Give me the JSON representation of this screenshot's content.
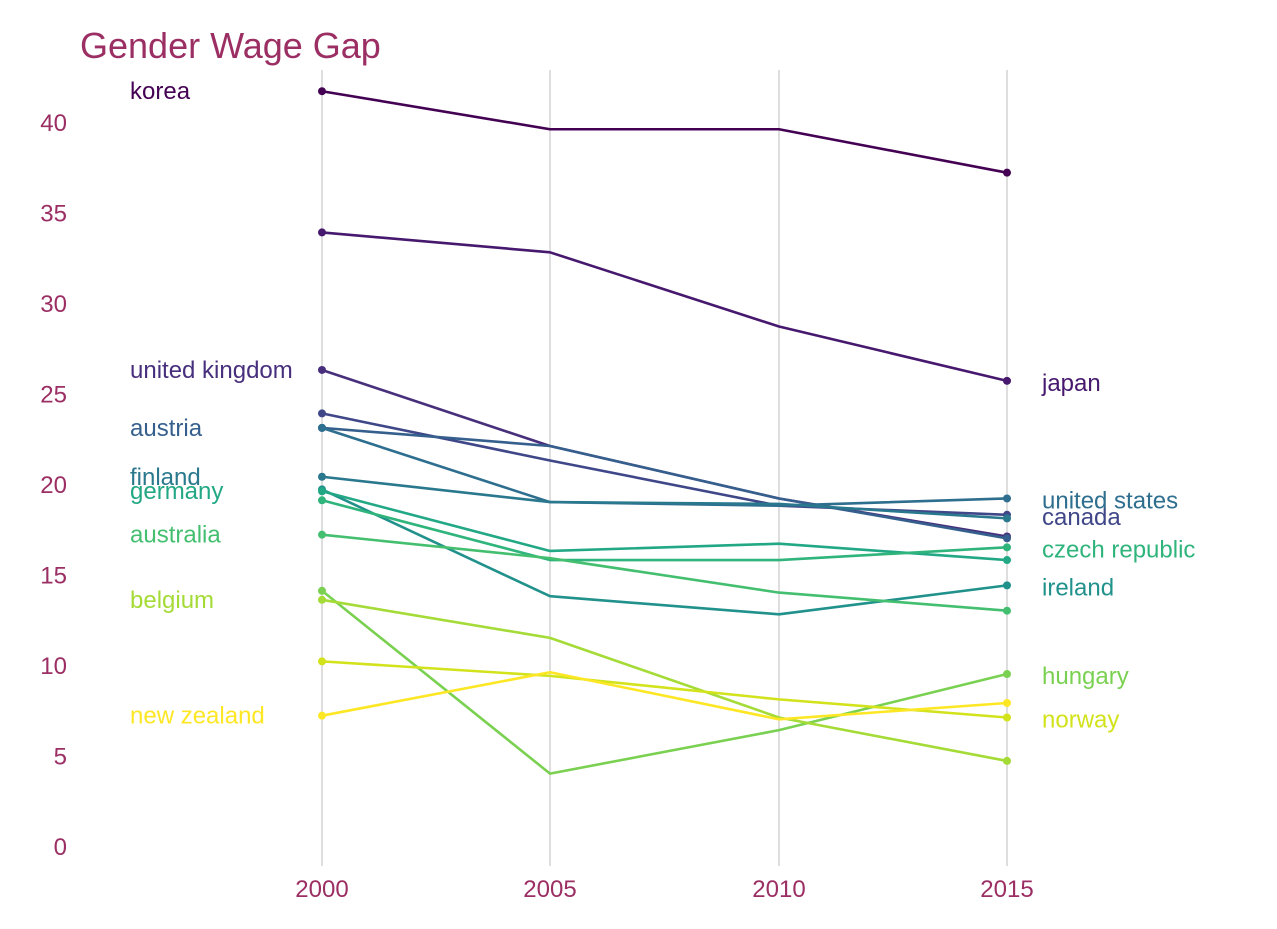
{
  "chart_data": {
    "type": "line",
    "title": "Gender Wage Gap",
    "xlabel": "",
    "ylabel": "",
    "x": [
      2000,
      2005,
      2010,
      2015
    ],
    "x_tick_labels": [
      "2000",
      "2005",
      "2010",
      "2015"
    ],
    "ylim": [
      0,
      42
    ],
    "y_ticks": [
      0,
      5,
      10,
      15,
      20,
      25,
      30,
      35,
      40
    ],
    "grid": "vertical lines at x ticks only",
    "legend": "none (direct labels: left at 2000 and right at 2015)",
    "colors": {
      "title": "#9b2f63",
      "ticks": "#9b2f63",
      "grid": "#c8c8c8"
    },
    "series": [
      {
        "name": "korea",
        "color": "#440154",
        "values": [
          41.7,
          39.6,
          39.6,
          37.2
        ],
        "label_side": "left"
      },
      {
        "name": "japan",
        "color": "#46186e",
        "values": [
          33.9,
          32.8,
          28.7,
          25.7
        ],
        "label_side": "right"
      },
      {
        "name": "united kingdom",
        "color": "#472f7d",
        "values": [
          26.3,
          22.1,
          19.2,
          17.1
        ],
        "label_side": "left"
      },
      {
        "name": "canada",
        "color": "#3f4788",
        "values": [
          23.9,
          21.3,
          18.8,
          18.3
        ],
        "label_side": "right"
      },
      {
        "name": "austria",
        "color": "#355f8d",
        "values": [
          23.1,
          22.1,
          19.2,
          17.0
        ],
        "label_side": "left"
      },
      {
        "name": "united states",
        "color": "#2e6e8e",
        "values": [
          23.1,
          19.0,
          18.8,
          19.2
        ],
        "label_side": "right"
      },
      {
        "name": "finland",
        "color": "#2a788e",
        "values": [
          20.4,
          19.0,
          18.9,
          18.1
        ],
        "label_side": "left"
      },
      {
        "name": "ireland",
        "color": "#21918c",
        "values": [
          19.7,
          13.8,
          12.8,
          14.4
        ],
        "label_side": "right"
      },
      {
        "name": "germany",
        "color": "#22a884",
        "values": [
          19.6,
          16.3,
          16.7,
          15.8
        ],
        "label_side": "left"
      },
      {
        "name": "czech republic",
        "color": "#2fb47c",
        "values": [
          19.1,
          15.8,
          15.8,
          16.5
        ],
        "label_side": "right"
      },
      {
        "name": "australia",
        "color": "#44bf70",
        "values": [
          17.2,
          15.9,
          14.0,
          13.0
        ],
        "label_side": "left"
      },
      {
        "name": "hungary",
        "color": "#7ad151",
        "values": [
          14.1,
          4.0,
          6.4,
          9.5
        ],
        "label_side": "right"
      },
      {
        "name": "belgium",
        "color": "#a5db36",
        "values": [
          13.6,
          11.5,
          7.1,
          4.7
        ],
        "label_side": "left"
      },
      {
        "name": "norway",
        "color": "#d2e21b",
        "values": [
          10.2,
          9.4,
          8.1,
          7.1
        ],
        "label_side": "right"
      },
      {
        "name": "new zealand",
        "color": "#fde725",
        "values": [
          7.2,
          9.6,
          7.0,
          7.9
        ],
        "label_side": "left"
      }
    ]
  }
}
